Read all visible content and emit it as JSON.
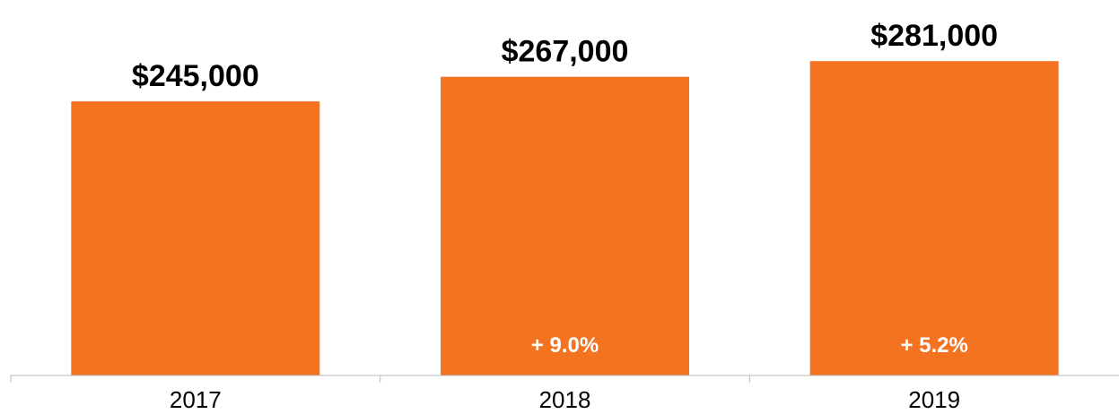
{
  "chart_data": {
    "type": "bar",
    "categories": [
      "2017",
      "2018",
      "2019"
    ],
    "values": [
      245000,
      267000,
      281000
    ],
    "value_labels": [
      "$245,000",
      "$267,000",
      "$281,000"
    ],
    "change_labels": [
      "",
      "+ 9.0%",
      "+ 5.2%"
    ],
    "ylim": [
      0,
      302000
    ],
    "grid": false,
    "legend": "none",
    "bar_color": "#f47321",
    "change_label_color": "#ffffff"
  }
}
